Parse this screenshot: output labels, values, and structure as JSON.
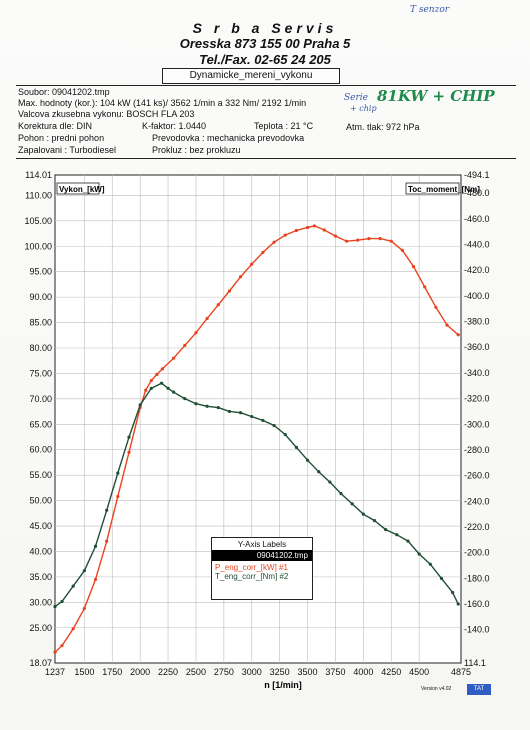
{
  "header": {
    "handwritten_top": "T senzor",
    "company": "S r b a   Servis",
    "address": "Oresska 873      155 00 Praha 5",
    "phone": "Tel./Fax. 02-65 24 205",
    "report_title": "Dynamicke_mereni_vykonu"
  },
  "info": {
    "soubor": "Soubor: 09041202.tmp",
    "max": "Max. hodnoty (kor.):  104 kW (141 ks)/ 3562 1/min  a   332 Nm/ 2192 1/min",
    "valcova": "Valcova zkusebna vykonu: BOSCH FLA 203",
    "korektura": "Korektura dle: DIN",
    "kfaktor": "K-faktor: 1.0440",
    "teplota": "Teplota      :  21 °C",
    "atm": "Atm. tlak:  972 hPa",
    "pohon": "Pohon        :  predni pohon",
    "prevodovka": "Prevodovka :  mechanicka prevodovka",
    "zapalovani": "Zapalovani   :  Turbodiesel",
    "prokluz": "Prokluz   :   bez prokluzu",
    "handwritten_1": "Serie",
    "handwritten_2": "+ chip",
    "handwritten_3": "81KW + CHIP"
  },
  "legend": {
    "title": "Y-Axis Labels",
    "file": "09041202.tmp",
    "series1": "P_eng_corr_[kW] #1",
    "series2": "T_eng_corr_[Nm] #2"
  },
  "footer": {
    "version": "Version v4.02",
    "badge": "TAT"
  },
  "colors": {
    "power": "#e8431e",
    "torque": "#1e4f34",
    "grid": "#bdbdbd"
  },
  "chart_data": {
    "type": "line",
    "xlabel": "n  [1/min]",
    "ylabel_left": "Vykon_[kW]",
    "ylabel_right": "Toc_moment_[Nm]",
    "xlim": [
      1237,
      4875
    ],
    "ylim_left": [
      18.07,
      114.01
    ],
    "ylim_right": [
      114.1,
      494.1
    ],
    "x_ticks": [
      "1237",
      "1500",
      "1750",
      "2000",
      "2250",
      "2500",
      "2750",
      "3000",
      "3250",
      "3500",
      "3750",
      "4000",
      "4250",
      "4500",
      "4875"
    ],
    "y_ticks_left": [
      "18.07",
      "25.00",
      "30.00",
      "35.00",
      "40.00",
      "45.00",
      "50.00",
      "55.00",
      "60.00",
      "65.00",
      "70.00",
      "75.00",
      "80.00",
      "85.00",
      "90.00",
      "95.00",
      "100.00",
      "105.00",
      "110.00",
      "114.01"
    ],
    "y_ticks_right": [
      "114.1",
      "-140.0",
      "-160.0",
      "-180.0",
      "-200.0",
      "-220.0",
      "-240.0",
      "-260.0",
      "-280.0",
      "-300.0",
      "-320.0",
      "-340.0",
      "-360.0",
      "-380.0",
      "-400.0",
      "-420.0",
      "-440.0",
      "-460.0",
      "-480.0",
      "-494.1"
    ],
    "grid": true,
    "legend_position": "bottom-center",
    "series": [
      {
        "name": "P_eng_corr_[kW] #1",
        "axis": "left",
        "x": [
          1237,
          1300,
          1400,
          1500,
          1600,
          1700,
          1800,
          1900,
          2000,
          2050,
          2100,
          2150,
          2200,
          2300,
          2400,
          2500,
          2600,
          2700,
          2800,
          2900,
          3000,
          3100,
          3200,
          3300,
          3400,
          3500,
          3562,
          3650,
          3750,
          3850,
          3950,
          4050,
          4150,
          4250,
          4350,
          4450,
          4550,
          4650,
          4750,
          4850
        ],
        "y": [
          20.2,
          21.5,
          24.8,
          28.8,
          34.5,
          42.0,
          50.8,
          59.5,
          68.3,
          71.7,
          73.6,
          74.8,
          75.9,
          78.0,
          80.5,
          83.0,
          85.8,
          88.5,
          91.2,
          94.0,
          96.5,
          98.8,
          100.8,
          102.2,
          103.1,
          103.7,
          104.0,
          103.2,
          102.0,
          101.0,
          101.2,
          101.5,
          101.5,
          101.0,
          99.2,
          96.0,
          92.0,
          88.0,
          84.5,
          82.6
        ]
      },
      {
        "name": "T_eng_corr_[Nm] #2",
        "axis": "right",
        "x": [
          1237,
          1300,
          1400,
          1500,
          1600,
          1700,
          1800,
          1900,
          2000,
          2100,
          2192,
          2250,
          2300,
          2400,
          2500,
          2600,
          2700,
          2800,
          2900,
          3000,
          3100,
          3200,
          3300,
          3400,
          3500,
          3600,
          3700,
          3800,
          3900,
          4000,
          4100,
          4200,
          4300,
          4400,
          4500,
          4600,
          4700,
          4800,
          4850
        ],
        "y": [
          158,
          162,
          174,
          186,
          205,
          233,
          262,
          290,
          315,
          328,
          332,
          328,
          325,
          320,
          316,
          314,
          313,
          310,
          309,
          306,
          303,
          299,
          292,
          282,
          272,
          263,
          255,
          246,
          238,
          230,
          225,
          218,
          214,
          209,
          199,
          191,
          180,
          169,
          160
        ]
      }
    ]
  }
}
